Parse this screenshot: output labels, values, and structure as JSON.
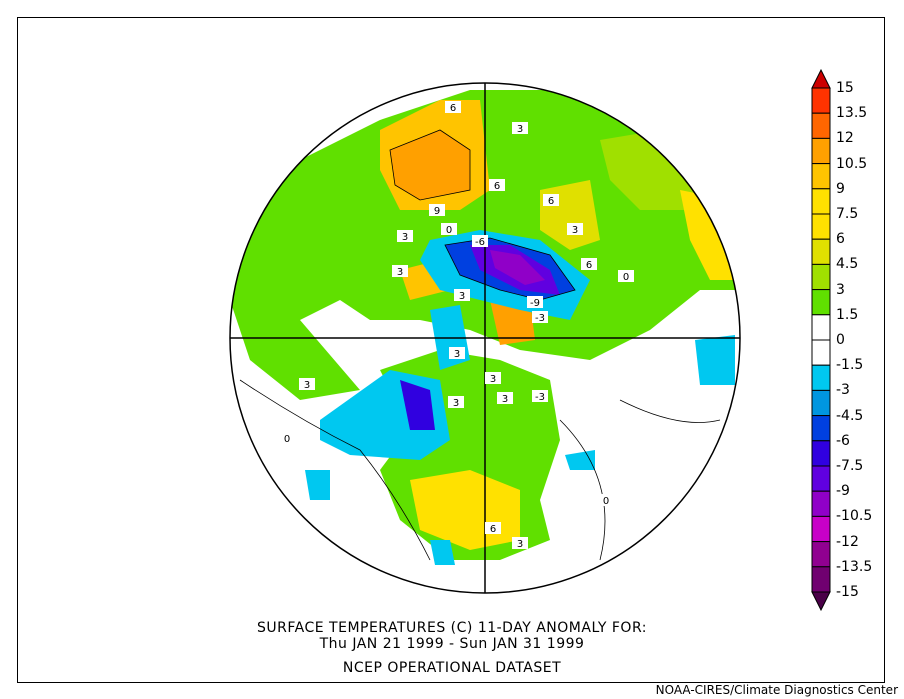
{
  "title": {
    "line1": "SURFACE TEMPERATURES (C)   11-DAY ANOMALY FOR:",
    "line2": "Thu JAN 21 1999 - Sun JAN 31 1999",
    "line3": "NCEP OPERATIONAL DATASET"
  },
  "credit": "NOAA-CIRES/Climate Diagnostics Center",
  "colorbar": {
    "labels": [
      "15",
      "13.5",
      "12",
      "10.5",
      "9",
      "7.5",
      "6",
      "4.5",
      "3",
      "1.5",
      "0",
      "-1.5",
      "-3",
      "-4.5",
      "-6",
      "-7.5",
      "-9",
      "-10.5",
      "-12",
      "-13.5",
      "-15"
    ],
    "top_arrow_color": "#cc0000",
    "bottom_arrow_color": "#4a0048",
    "colors": [
      "#ff3300",
      "#ff6600",
      "#ffa000",
      "#ffc400",
      "#ffe100",
      "#ffe100",
      "#e0e000",
      "#a0e000",
      "#60e000",
      "#ffffff",
      "#ffffff",
      "#00c8f0",
      "#0096e0",
      "#0040e0",
      "#3000e0",
      "#6000e0",
      "#9000c8",
      "#c800c8",
      "#900090",
      "#700070"
    ]
  },
  "contour_labels": [
    "6",
    "3",
    "6",
    "9",
    "6",
    "3",
    "3",
    "6",
    "0",
    "-6",
    "-9",
    "-3",
    "3",
    "3",
    "3",
    "0",
    "3",
    "-3",
    "3",
    "6",
    "3",
    "0",
    "0",
    "3",
    "3"
  ]
}
